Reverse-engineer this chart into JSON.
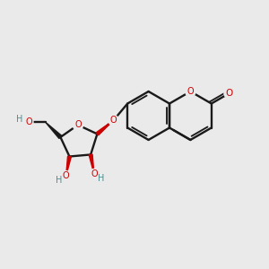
{
  "bg_color": "#eaeaea",
  "bond_color": "#1a1a1a",
  "oxygen_color": "#cc0000",
  "oh_color": "#4a8f8f",
  "figsize": [
    3.0,
    3.0
  ],
  "dpi": 100,
  "BL": 0.9,
  "lw": 1.7,
  "fs": 7.0,
  "coumarin": {
    "C8a": [
      6.3,
      6.15
    ],
    "C4a": [
      6.3,
      5.25
    ]
  }
}
